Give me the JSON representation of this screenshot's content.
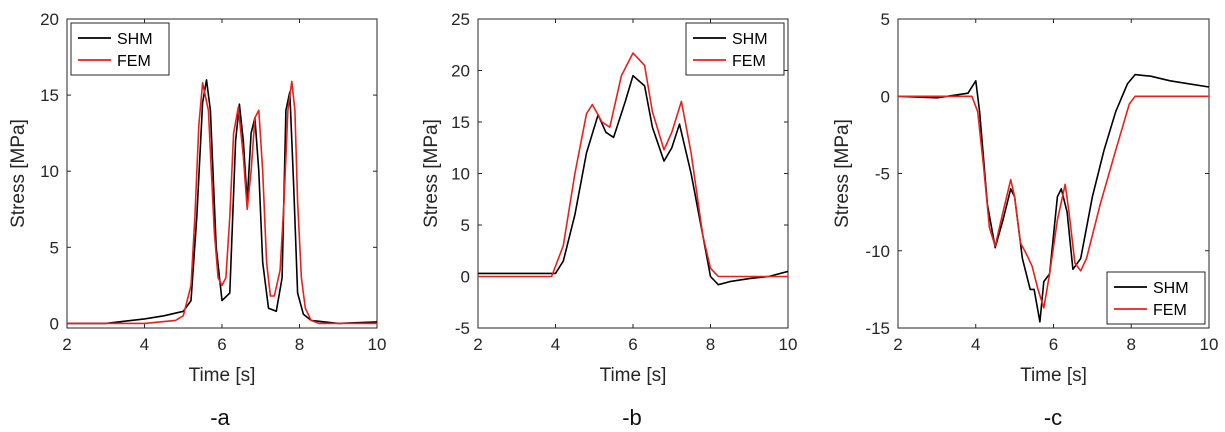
{
  "colors": {
    "shm": "#000000",
    "fem": "#e8211d",
    "axis": "#262626"
  },
  "chart_data": [
    {
      "type": "line",
      "caption": "-a",
      "xlabel": "Time [s]",
      "ylabel": "Stress [MPa]",
      "xlim": [
        2,
        10
      ],
      "ylim": [
        -0.3,
        20
      ],
      "xticks": [
        2,
        4,
        6,
        8,
        10
      ],
      "yticks": [
        0,
        5,
        10,
        15,
        20
      ],
      "legend": {
        "position": "top-left",
        "entries": [
          "SHM",
          "FEM"
        ]
      },
      "series": [
        {
          "name": "SHM",
          "color_key": "shm",
          "x": [
            2,
            3,
            4,
            4.5,
            5,
            5.2,
            5.35,
            5.5,
            5.6,
            5.7,
            5.85,
            6.0,
            6.2,
            6.35,
            6.45,
            6.55,
            6.65,
            6.75,
            6.85,
            6.95,
            7.05,
            7.2,
            7.4,
            7.55,
            7.65,
            7.75,
            7.85,
            7.95,
            8.1,
            8.3,
            9,
            10
          ],
          "y": [
            0,
            0,
            0.3,
            0.5,
            0.8,
            1.5,
            7,
            14.5,
            16,
            14,
            5,
            1.5,
            2,
            12,
            14.4,
            12,
            8,
            12.5,
            13.5,
            10,
            4,
            1,
            0.8,
            3,
            14,
            15.2,
            9,
            2,
            0.6,
            0.2,
            0,
            0.1
          ]
        },
        {
          "name": "FEM",
          "color_key": "fem",
          "x": [
            2,
            4,
            4.8,
            5.0,
            5.2,
            5.3,
            5.4,
            5.5,
            5.65,
            5.8,
            5.9,
            6.0,
            6.1,
            6.2,
            6.3,
            6.42,
            6.55,
            6.65,
            6.75,
            6.85,
            6.95,
            7.05,
            7.15,
            7.25,
            7.35,
            7.5,
            7.6,
            7.7,
            7.8,
            7.88,
            7.95,
            8.05,
            8.15,
            8.3,
            8.5,
            10
          ],
          "y": [
            0,
            0,
            0.2,
            0.5,
            2.5,
            7,
            13,
            15.8,
            14,
            6,
            3,
            2.5,
            3,
            7,
            12.5,
            14.2,
            11,
            7.5,
            10,
            13.5,
            14,
            10,
            4,
            1.8,
            1.8,
            3.5,
            8,
            14,
            15.9,
            14,
            8,
            3,
            1,
            0.2,
            0,
            0
          ]
        }
      ]
    },
    {
      "type": "line",
      "caption": "-b",
      "xlabel": "Time [s]",
      "ylabel": "Stress [MPa]",
      "xlim": [
        2,
        10
      ],
      "ylim": [
        -5,
        25
      ],
      "xticks": [
        2,
        4,
        6,
        8,
        10
      ],
      "yticks": [
        -5,
        0,
        5,
        10,
        15,
        20,
        25
      ],
      "legend": {
        "position": "top-right",
        "entries": [
          "SHM",
          "FEM"
        ]
      },
      "series": [
        {
          "name": "SHM",
          "color_key": "shm",
          "x": [
            2,
            3,
            4,
            4.2,
            4.5,
            4.8,
            5.1,
            5.3,
            5.5,
            5.8,
            6.0,
            6.3,
            6.5,
            6.8,
            7.0,
            7.2,
            7.5,
            7.8,
            8.0,
            8.2,
            8.5,
            9,
            9.5,
            10
          ],
          "y": [
            0.3,
            0.3,
            0.3,
            1.5,
            6,
            12,
            15.7,
            14,
            13.5,
            17,
            19.5,
            18.5,
            14.5,
            11.2,
            12.5,
            14.8,
            10,
            4,
            0,
            -0.8,
            -0.5,
            -0.2,
            0,
            0.5
          ]
        },
        {
          "name": "FEM",
          "color_key": "fem",
          "x": [
            2,
            3,
            3.9,
            4.2,
            4.5,
            4.8,
            4.95,
            5.2,
            5.4,
            5.7,
            6.0,
            6.3,
            6.5,
            6.8,
            7.0,
            7.25,
            7.5,
            7.8,
            8.0,
            8.2,
            10
          ],
          "y": [
            0,
            0,
            0,
            3,
            10,
            15.8,
            16.7,
            15,
            14.5,
            19.5,
            21.7,
            20.5,
            16,
            12.3,
            14,
            17,
            12,
            4,
            0.8,
            0,
            0
          ]
        }
      ]
    },
    {
      "type": "line",
      "caption": "-c",
      "xlabel": "Time [s]",
      "ylabel": "Stress [MPa]",
      "xlim": [
        2,
        10
      ],
      "ylim": [
        -15,
        5
      ],
      "xticks": [
        2,
        4,
        6,
        8,
        10
      ],
      "yticks": [
        -15,
        -10,
        -5,
        0,
        5
      ],
      "legend": {
        "position": "bottom-right",
        "entries": [
          "SHM",
          "FEM"
        ]
      },
      "series": [
        {
          "name": "SHM",
          "color_key": "shm",
          "x": [
            2,
            3,
            3.8,
            4.0,
            4.1,
            4.3,
            4.5,
            4.7,
            4.9,
            5.0,
            5.2,
            5.4,
            5.5,
            5.65,
            5.75,
            5.9,
            6.1,
            6.2,
            6.35,
            6.5,
            6.7,
            7.0,
            7.3,
            7.6,
            7.9,
            8.1,
            8.5,
            9,
            9.5,
            10
          ],
          "y": [
            0,
            -0.1,
            0.2,
            1.0,
            -1,
            -7,
            -9.8,
            -8,
            -6,
            -6.5,
            -10.5,
            -12.5,
            -12.5,
            -14.6,
            -12,
            -11.5,
            -6.5,
            -6,
            -7.5,
            -11.2,
            -10.5,
            -6.5,
            -3.5,
            -1,
            0.8,
            1.4,
            1.3,
            1.0,
            0.8,
            0.6
          ]
        },
        {
          "name": "FEM",
          "color_key": "fem",
          "x": [
            2,
            3.9,
            4.05,
            4.2,
            4.35,
            4.5,
            4.7,
            4.9,
            5.0,
            5.15,
            5.3,
            5.45,
            5.6,
            5.75,
            5.9,
            6.1,
            6.3,
            6.4,
            6.55,
            6.7,
            6.85,
            7.2,
            7.6,
            7.95,
            8.1,
            10
          ],
          "y": [
            0,
            0,
            -1,
            -4.5,
            -8.5,
            -9.7,
            -7.5,
            -5.4,
            -6.5,
            -9.5,
            -10.2,
            -11,
            -12.5,
            -13.7,
            -11.5,
            -8,
            -5.7,
            -7.5,
            -10.8,
            -11.3,
            -10.5,
            -7,
            -3.5,
            -0.5,
            0,
            0
          ]
        }
      ]
    }
  ]
}
